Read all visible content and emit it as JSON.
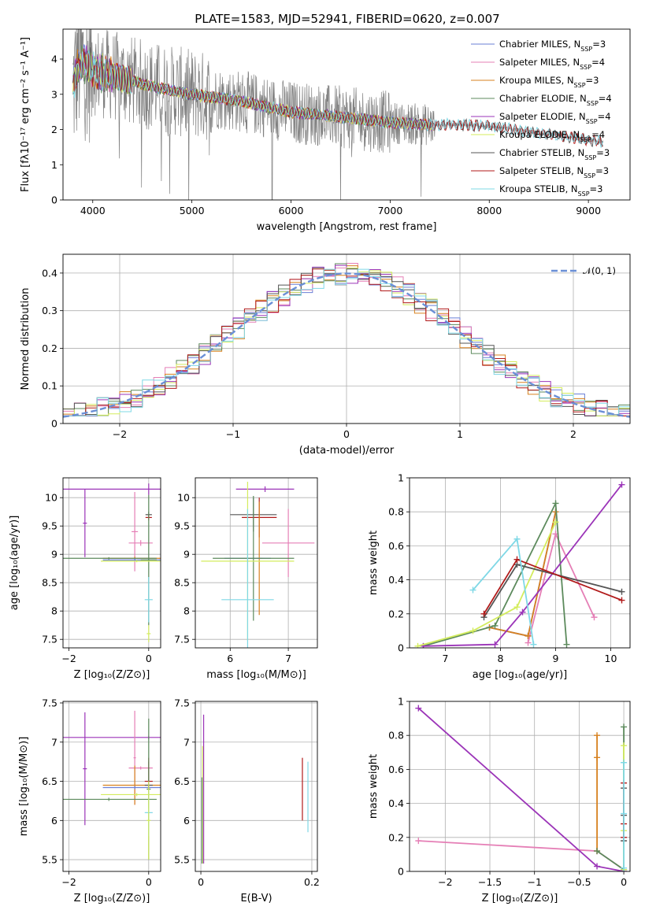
{
  "figure_title": "PLATE=1583, MJD=52941, FIBERID=0620, z=0.007",
  "legend": [
    {
      "label": "Chabrier MILES, N",
      "sub": "SSP",
      "tail": "=3",
      "color": "#6a7fd6"
    },
    {
      "label": "Salpeter MILES, N",
      "sub": "SSP",
      "tail": "=4",
      "color": "#e57fb6"
    },
    {
      "label": "Kroupa MILES, N",
      "sub": "SSP",
      "tail": "=3",
      "color": "#d7811f"
    },
    {
      "label": "Chabrier ELODIE, N",
      "sub": "SSP",
      "tail": "=4",
      "color": "#5c8a5c"
    },
    {
      "label": "Salpeter ELODIE, N",
      "sub": "SSP",
      "tail": "=4",
      "color": "#9b34b8"
    },
    {
      "label": "Kroupa ELODIE, N",
      "sub": "SSP",
      "tail": "=4",
      "color": "#d4ec5e"
    },
    {
      "label": "Chabrier STELIB, N",
      "sub": "SSP",
      "tail": "=3",
      "color": "#555555"
    },
    {
      "label": "Salpeter STELIB, N",
      "sub": "SSP",
      "tail": "=3",
      "color": "#b11a1a"
    },
    {
      "label": "Kroupa STELIB, N",
      "sub": "SSP",
      "tail": "=3",
      "color": "#7fd8e6"
    }
  ],
  "chart_data": [
    {
      "id": "spectrum",
      "type": "line",
      "xlabel": "wavelength [Angstrom, rest frame]",
      "ylabel": "Flux [fλ10⁻¹⁷ erg cm⁻² s⁻¹ A⁻¹]",
      "xlim": [
        3700,
        9420
      ],
      "ylim": [
        0,
        4.85
      ],
      "xticks": [
        4000,
        5000,
        6000,
        7000,
        8000,
        9000
      ],
      "yticks": [
        0,
        1,
        2,
        3,
        4
      ],
      "data_color": "#808080",
      "continuum": {
        "x": [
          3800,
          3850,
          3900,
          4000,
          4100,
          4300,
          4500,
          4800,
          5000,
          5500,
          6000,
          6500,
          7000,
          7300,
          7450,
          7600,
          8000,
          8500,
          9000,
          9150
        ],
        "y": [
          3.2,
          3.8,
          3.9,
          3.7,
          3.6,
          3.45,
          3.3,
          3.1,
          3.0,
          2.8,
          2.5,
          2.35,
          2.2,
          2.15,
          2.12,
          2.15,
          2.1,
          1.9,
          1.7,
          1.65
        ]
      }
    },
    {
      "id": "residuals",
      "type": "line",
      "xlabel": "(data-model)/error",
      "ylabel": "Normed distribution",
      "xlim": [
        -2.5,
        2.5
      ],
      "ylim": [
        0,
        0.45
      ],
      "xticks": [
        -2,
        -1,
        0,
        1,
        2
      ],
      "yticks": [
        0,
        0.1,
        0.2,
        0.3,
        0.4
      ],
      "gaussian_label": "𝒩(0, 1)",
      "gaussian_color": "#6a8fd6",
      "hist_bins": [
        -2.5,
        -2.4,
        -2.3,
        -2.2,
        -2.1,
        -2.0,
        -1.9,
        -1.8,
        -1.7,
        -1.6,
        -1.5,
        -1.4,
        -1.3,
        -1.2,
        -1.1,
        -1.0,
        -0.9,
        -0.8,
        -0.7,
        -0.6,
        -0.5,
        -0.4,
        -0.3,
        -0.2,
        -0.1,
        0.0,
        0.1,
        0.2,
        0.3,
        0.4,
        0.5,
        0.6,
        0.7,
        0.8,
        0.9,
        1.0,
        1.1,
        1.2,
        1.3,
        1.4,
        1.5,
        1.6,
        1.7,
        1.8,
        1.9,
        2.0,
        2.1,
        2.2,
        2.3,
        2.4
      ]
    },
    {
      "id": "age_vs_Z",
      "type": "scatter",
      "xlabel": "Z [log₁₀(Z/Z⊙)]",
      "ylabel": "age  [log₁₀(age/yr)]",
      "xlim": [
        -2.15,
        0.3
      ],
      "ylim": [
        7.35,
        10.35
      ],
      "xticks": [
        -2,
        0
      ],
      "yticks": [
        7.5,
        8.0,
        8.5,
        9.0,
        9.5,
        10.0
      ],
      "points": [
        {
          "x": 0.0,
          "y": 10.15,
          "xe": 2.3,
          "ye": 0.1,
          "c": "#9b34b8"
        },
        {
          "x": -0.35,
          "y": 9.4,
          "xe": 0.08,
          "ye": 0.7,
          "c": "#e57fb6"
        },
        {
          "x": -0.2,
          "y": 9.2,
          "xe": 0.3,
          "ye": 0.05,
          "c": "#e57fb6"
        },
        {
          "x": 0.0,
          "y": 9.7,
          "xe": 0.08,
          "ye": 0.05,
          "c": "#555555"
        },
        {
          "x": 0.0,
          "y": 9.65,
          "xe": 0.08,
          "ye": 0.05,
          "c": "#b11a1a"
        },
        {
          "x": -0.35,
          "y": 8.93,
          "xe": 0.8,
          "ye": 0.03,
          "c": "#d7811f"
        },
        {
          "x": -0.35,
          "y": 8.9,
          "xe": 0.8,
          "ye": 0.03,
          "c": "#6a7fd6"
        },
        {
          "x": -1.0,
          "y": 8.93,
          "xe": 1.2,
          "ye": 0.02,
          "c": "#5c8a5c"
        },
        {
          "x": 0.0,
          "y": 8.9,
          "xe": 0.2,
          "ye": 1.15,
          "c": "#5c8a5c"
        },
        {
          "x": -0.3,
          "y": 8.88,
          "xe": 0.9,
          "ye": 0.02,
          "c": "#d4ec5e"
        },
        {
          "x": 0.0,
          "y": 8.2,
          "xe": 0.1,
          "ye": 0.4,
          "c": "#7fd8e6"
        },
        {
          "x": 0.0,
          "y": 7.6,
          "xe": 0.05,
          "ye": 0.15,
          "c": "#d4ec5e"
        },
        {
          "x": -1.6,
          "y": 9.55,
          "xe": 0.05,
          "ye": 0.6,
          "c": "#9b34b8"
        }
      ]
    },
    {
      "id": "age_vs_mass",
      "type": "scatter",
      "xlabel": "mass [log₁₀(M/M⊙)]",
      "ylabel": "",
      "xlim": [
        5.4,
        7.5
      ],
      "ylim": [
        7.35,
        10.35
      ],
      "xticks": [
        6,
        7
      ],
      "yticks": [
        7.5,
        8.0,
        8.5,
        9.0,
        9.5,
        10.0
      ],
      "points": [
        {
          "x": 6.6,
          "y": 10.15,
          "xe": 0.5,
          "ye": 0.05,
          "c": "#9b34b8"
        },
        {
          "x": 7.0,
          "y": 9.2,
          "xe": 0.45,
          "ye": 0.6,
          "c": "#e57fb6"
        },
        {
          "x": 6.4,
          "y": 9.7,
          "xe": 0.4,
          "ye": 0.3,
          "c": "#555555"
        },
        {
          "x": 6.5,
          "y": 9.65,
          "xe": 0.3,
          "ye": 0.35,
          "c": "#b11a1a"
        },
        {
          "x": 6.5,
          "y": 8.93,
          "xe": 0.05,
          "ye": 1.0,
          "c": "#d7811f"
        },
        {
          "x": 6.3,
          "y": 8.93,
          "xe": 0.4,
          "ye": 0.03,
          "c": "#6a7fd6"
        },
        {
          "x": 6.4,
          "y": 8.93,
          "xe": 0.7,
          "ye": 1.1,
          "c": "#5c8a5c"
        },
        {
          "x": 6.3,
          "y": 8.88,
          "xe": 0.8,
          "ye": 1.4,
          "c": "#d4ec5e"
        },
        {
          "x": 6.3,
          "y": 8.2,
          "xe": 0.45,
          "ye": 1.6,
          "c": "#7fd8e6"
        }
      ]
    },
    {
      "id": "weight_vs_age",
      "type": "line",
      "xlabel": "age  [log₁₀(age/yr)]",
      "ylabel": "mass weight",
      "xlim": [
        6.35,
        10.35
      ],
      "ylim": [
        0,
        1.0
      ],
      "xticks": [
        7,
        8,
        9,
        10
      ],
      "yticks": [
        0.0,
        0.2,
        0.4,
        0.6,
        0.8,
        1.0
      ],
      "series": [
        {
          "c": "#6a7fd6",
          "x": [
            7.8,
            8.5,
            9.0
          ],
          "y": [
            0.12,
            0.07,
            0.8
          ]
        },
        {
          "c": "#e57fb6",
          "x": [
            8.5,
            9.0,
            9.7
          ],
          "y": [
            0.03,
            0.67,
            0.18
          ]
        },
        {
          "c": "#d7811f",
          "x": [
            7.8,
            8.5,
            9.0
          ],
          "y": [
            0.12,
            0.07,
            0.8
          ]
        },
        {
          "c": "#5c8a5c",
          "x": [
            6.6,
            7.9,
            9.0,
            9.2
          ],
          "y": [
            0.01,
            0.13,
            0.85,
            0.02
          ]
        },
        {
          "c": "#9b34b8",
          "x": [
            6.6,
            7.9,
            8.4,
            10.2
          ],
          "y": [
            0.01,
            0.02,
            0.21,
            0.96
          ]
        },
        {
          "c": "#d4ec5e",
          "x": [
            6.5,
            7.5,
            8.3,
            9.0
          ],
          "y": [
            0.01,
            0.1,
            0.24,
            0.74
          ]
        },
        {
          "c": "#555555",
          "x": [
            7.7,
            8.3,
            10.2
          ],
          "y": [
            0.18,
            0.49,
            0.33
          ]
        },
        {
          "c": "#b11a1a",
          "x": [
            7.7,
            8.3,
            10.2
          ],
          "y": [
            0.2,
            0.52,
            0.28
          ]
        },
        {
          "c": "#7fd8e6",
          "x": [
            7.5,
            8.3,
            8.6
          ],
          "y": [
            0.34,
            0.64,
            0.02
          ]
        }
      ]
    },
    {
      "id": "mass_vs_Z",
      "type": "scatter",
      "xlabel": "Z [log₁₀(Z/Z⊙)]",
      "ylabel": "mass [log₁₀(M/M⊙)]",
      "xlim": [
        -2.15,
        0.3
      ],
      "ylim": [
        5.35,
        7.52
      ],
      "xticks": [
        -2,
        0
      ],
      "yticks": [
        5.5,
        6.0,
        6.5,
        7.0,
        7.5
      ],
      "points": [
        {
          "x": 0.0,
          "y": 7.06,
          "xe": 2.3,
          "ye": 0.02,
          "c": "#9b34b8"
        },
        {
          "x": -1.6,
          "y": 6.66,
          "xe": 0.05,
          "ye": 0.72,
          "c": "#9b34b8"
        },
        {
          "x": -0.35,
          "y": 6.8,
          "xe": 0.03,
          "ye": 0.6,
          "c": "#e57fb6"
        },
        {
          "x": -0.2,
          "y": 6.67,
          "xe": 0.3,
          "ye": 0.02,
          "c": "#e57fb6"
        },
        {
          "x": -0.35,
          "y": 6.45,
          "xe": 0.8,
          "ye": 0.25,
          "c": "#d7811f"
        },
        {
          "x": -0.35,
          "y": 6.42,
          "xe": 0.8,
          "ye": 0.02,
          "c": "#6a7fd6"
        },
        {
          "x": 0.0,
          "y": 6.45,
          "xe": 0.1,
          "ye": 0.3,
          "c": "#555555"
        },
        {
          "x": 0.0,
          "y": 6.5,
          "xe": 0.1,
          "ye": 0.3,
          "c": "#b11a1a"
        },
        {
          "x": -1.0,
          "y": 6.27,
          "xe": 1.2,
          "ye": 0.02,
          "c": "#5c8a5c"
        },
        {
          "x": 0.0,
          "y": 6.4,
          "xe": 0.05,
          "ye": 0.9,
          "c": "#5c8a5c"
        },
        {
          "x": -0.3,
          "y": 6.33,
          "xe": 0.9,
          "ye": 0.02,
          "c": "#d4ec5e"
        },
        {
          "x": 0.0,
          "y": 6.1,
          "xe": 0.1,
          "ye": 0.3,
          "c": "#7fd8e6"
        },
        {
          "x": 0.0,
          "y": 6.0,
          "xe": 0.05,
          "ye": 0.5,
          "c": "#d4ec5e"
        }
      ]
    },
    {
      "id": "mass_vs_ebv",
      "type": "scatter",
      "xlabel": "E(B-V)",
      "ylabel": "",
      "xlim": [
        -0.01,
        0.21
      ],
      "ylim": [
        5.35,
        7.52
      ],
      "xticks": [
        0.0,
        0.2
      ],
      "yticks": [
        5.5,
        6.0,
        6.5,
        7.0,
        7.5
      ],
      "points": [
        {
          "x": 0.005,
          "y": 6.4,
          "xe": 0.0,
          "ye": 0.95,
          "c": "#9b34b8"
        },
        {
          "x": 0.003,
          "y": 6.2,
          "xe": 0.0,
          "ye": 0.75,
          "c": "#d4ec5e"
        },
        {
          "x": 0.002,
          "y": 6.0,
          "xe": 0.0,
          "ye": 0.55,
          "c": "#5c8a5c"
        },
        {
          "x": 0.183,
          "y": 6.4,
          "xe": 0.0,
          "ye": 0.4,
          "c": "#b11a1a"
        },
        {
          "x": 0.193,
          "y": 6.3,
          "xe": 0.0,
          "ye": 0.45,
          "c": "#7fd8e6"
        }
      ]
    },
    {
      "id": "weight_vs_Z",
      "type": "line",
      "xlabel": "Z [log₁₀(Z/Z⊙)]",
      "ylabel": "mass weight",
      "xlim": [
        -2.4,
        0.07
      ],
      "ylim": [
        0,
        1.0
      ],
      "xticks": [
        -2.0,
        -1.5,
        -1.0,
        -0.5,
        0.0
      ],
      "yticks": [
        0.0,
        0.2,
        0.4,
        0.6,
        0.8,
        1.0
      ],
      "series": [
        {
          "c": "#e57fb6",
          "x": [
            -2.3,
            -0.3,
            0.0
          ],
          "y": [
            0.18,
            0.12,
            0.01
          ]
        },
        {
          "c": "#9b34b8",
          "x": [
            -2.3,
            -0.3,
            0.0
          ],
          "y": [
            0.96,
            0.03,
            0.0
          ]
        },
        {
          "c": "#d7811f",
          "x": [
            -0.3,
            -0.3,
            -0.3
          ],
          "y": [
            0.12,
            0.67,
            0.8
          ]
        },
        {
          "c": "#5c8a5c",
          "x": [
            -0.3,
            0.0,
            0.0
          ],
          "y": [
            0.12,
            0.01,
            0.85
          ]
        },
        {
          "c": "#d4ec5e",
          "x": [
            0.0,
            0.0,
            0.0
          ],
          "y": [
            0.01,
            0.24,
            0.74
          ]
        },
        {
          "c": "#555555",
          "x": [
            0.0,
            0.0,
            0.0
          ],
          "y": [
            0.18,
            0.33,
            0.49
          ]
        },
        {
          "c": "#b11a1a",
          "x": [
            0.0,
            0.0,
            0.0
          ],
          "y": [
            0.2,
            0.28,
            0.52
          ]
        },
        {
          "c": "#7fd8e6",
          "x": [
            0.0,
            0.0,
            0.0
          ],
          "y": [
            0.02,
            0.34,
            0.64
          ]
        }
      ]
    }
  ]
}
